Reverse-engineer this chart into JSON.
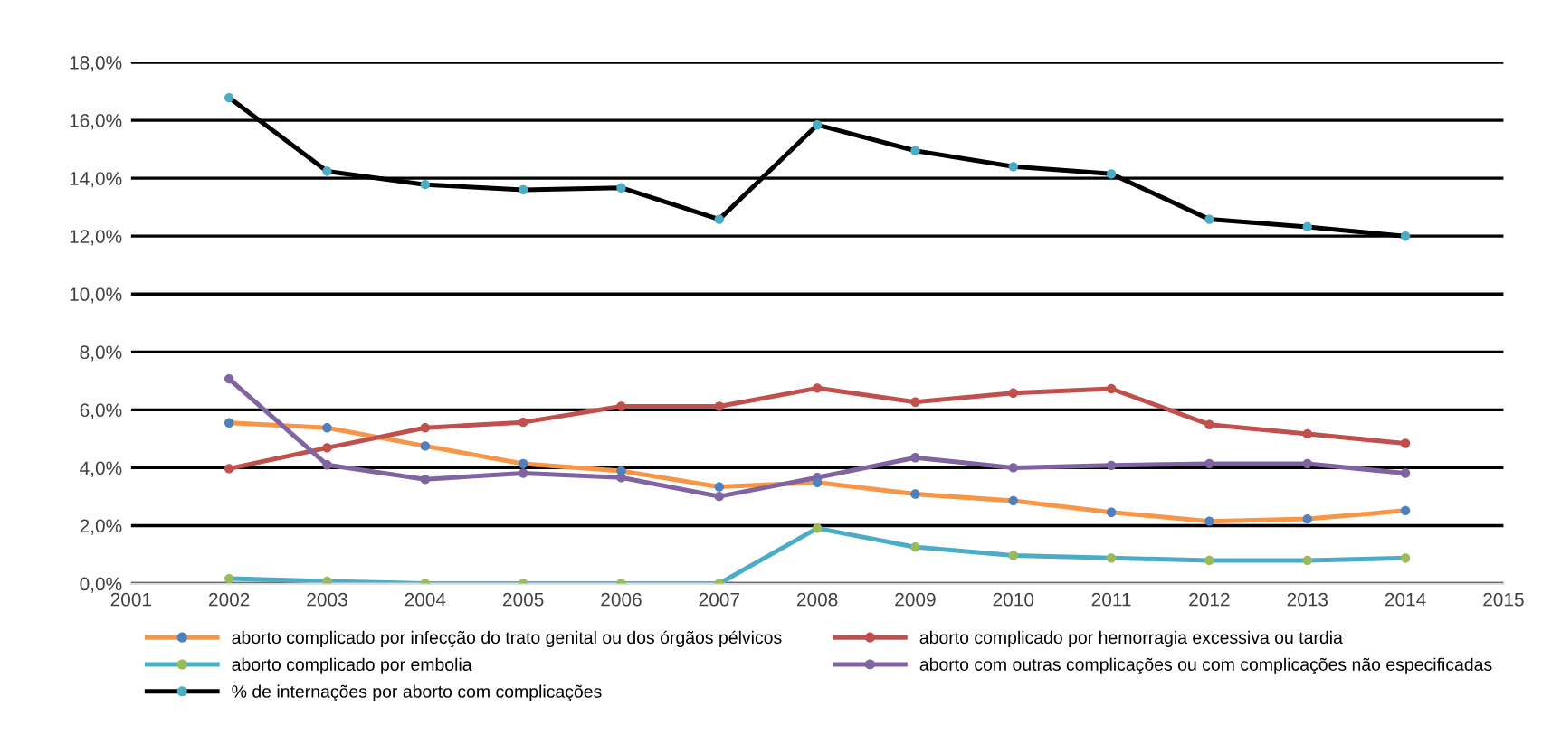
{
  "chart_data": {
    "type": "line",
    "x": [
      2002,
      2003,
      2004,
      2005,
      2006,
      2007,
      2008,
      2009,
      2010,
      2011,
      2012,
      2013,
      2014
    ],
    "series": [
      {
        "name": "aborto complicado por infecção do trato genital ou dos órgãos pélvicos",
        "color": "#f79646",
        "colors": [
          "#4f81bd",
          "#4f81bd",
          "#4f81bd",
          "#4f81bd",
          "#4f81bd",
          "#4f81bd",
          "#4f81bd",
          "#4f81bd",
          "#4f81bd",
          "#4f81bd",
          "#4f81bd",
          "#4f81bd",
          "#4f81bd"
        ],
        "values": [
          5.55,
          5.38,
          4.75,
          4.14,
          3.89,
          3.34,
          3.49,
          3.09,
          2.86,
          2.46,
          2.15,
          2.23,
          2.52
        ]
      },
      {
        "name": "aborto complicado por hemorragia excessiva ou tardia",
        "color": "#c0504d",
        "colors": [
          "#c0504d",
          "#c0504d",
          "#c0504d",
          "#c0504d",
          "#c0504d",
          "#c0504d",
          "#c0504d",
          "#c0504d",
          "#c0504d",
          "#c0504d",
          "#c0504d",
          "#c0504d",
          "#c0504d"
        ],
        "values": [
          3.97,
          4.69,
          5.38,
          5.57,
          6.12,
          6.12,
          6.75,
          6.27,
          6.58,
          6.73,
          5.49,
          5.17,
          4.84
        ]
      },
      {
        "name": "aborto complicado por embolia",
        "color": "#4bacc6",
        "colors": [
          "#9bbb59",
          "#9bbb59",
          "#9bbb59",
          "#9bbb59",
          "#9bbb59",
          "#9bbb59",
          "#9bbb59",
          "#9bbb59",
          "#9bbb59",
          "#9bbb59",
          "#9bbb59",
          "#9bbb59",
          "#9bbb59"
        ],
        "values": [
          0.17,
          0.08,
          0.0,
          0.0,
          0.0,
          0.0,
          1.91,
          1.26,
          0.97,
          0.88,
          0.8,
          0.8,
          0.88
        ]
      },
      {
        "name": "aborto com outras complicações ou com complicações não especificadas",
        "color": "#8064a2",
        "colors": [
          "#8064a2",
          "#8064a2",
          "#8064a2",
          "#8064a2",
          "#8064a2",
          "#8064a2",
          "#8064a2",
          "#8064a2",
          "#8064a2",
          "#8064a2",
          "#8064a2",
          "#8064a2",
          "#8064a2"
        ],
        "values": [
          7.07,
          4.1,
          3.6,
          3.81,
          3.66,
          3.01,
          3.66,
          4.35,
          4.0,
          4.08,
          4.14,
          4.14,
          3.81
        ]
      },
      {
        "name": "% de internações por aborto com complicações",
        "color": "#000000",
        "colors": [
          "#4bacc6",
          "#4bacc6",
          "#4bacc6",
          "#4bacc6",
          "#4bacc6",
          "#4bacc6",
          "#4bacc6",
          "#4bacc6",
          "#4bacc6",
          "#4bacc6",
          "#4bacc6",
          "#4bacc6",
          "#4bacc6"
        ],
        "values": [
          16.78,
          14.24,
          13.78,
          13.6,
          13.67,
          12.58,
          15.84,
          14.95,
          14.4,
          14.15,
          12.58,
          12.32,
          12.0
        ]
      }
    ],
    "xlim": [
      2001,
      2015
    ],
    "xticks": [
      2001,
      2002,
      2003,
      2004,
      2005,
      2006,
      2007,
      2008,
      2009,
      2010,
      2011,
      2012,
      2013,
      2014,
      2015
    ],
    "ylim": [
      0,
      18
    ],
    "yticks": [
      {
        "value": 0,
        "label": "0,0%"
      },
      {
        "value": 2,
        "label": "2,0%"
      },
      {
        "value": 4,
        "label": "4,0%"
      },
      {
        "value": 6,
        "label": "6,0%"
      },
      {
        "value": 8,
        "label": "8,0%"
      },
      {
        "value": 10,
        "label": "10,0%"
      },
      {
        "value": 12,
        "label": "12,0%"
      },
      {
        "value": 14,
        "label": "14,0%"
      },
      {
        "value": 16,
        "label": "16,0%"
      },
      {
        "value": 18,
        "label": "18,0%"
      }
    ],
    "grid": "y",
    "legend": "bottom",
    "marker": "circle",
    "line_style": "solid"
  }
}
